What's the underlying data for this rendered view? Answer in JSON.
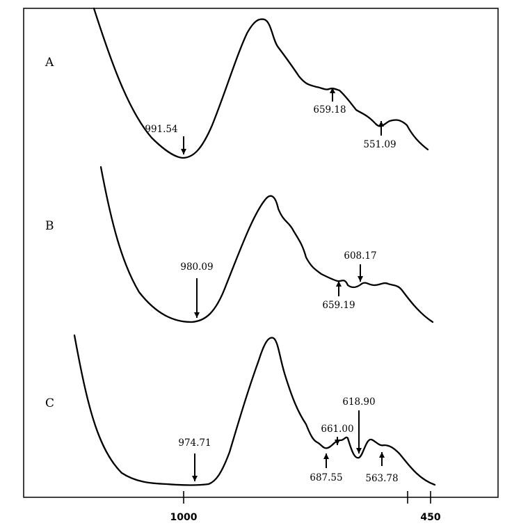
{
  "chart_data": {
    "type": "line",
    "title": "",
    "xlabel": "",
    "ylabel": "",
    "x_tick_labels": [
      "1000",
      "450"
    ],
    "grid": false,
    "series": [
      {
        "name": "A",
        "annotations": [
          {
            "x": 991.54,
            "label": "991.54",
            "dir": "down"
          },
          {
            "x": 659.18,
            "label": "659.18",
            "dir": "up"
          },
          {
            "x": 551.09,
            "label": "551.09",
            "dir": "up"
          }
        ]
      },
      {
        "name": "B",
        "annotations": [
          {
            "x": 980.09,
            "label": "980.09",
            "dir": "down"
          },
          {
            "x": 659.19,
            "label": "659.19",
            "dir": "up"
          },
          {
            "x": 608.17,
            "label": "608.17",
            "dir": "down"
          }
        ]
      },
      {
        "name": "C",
        "annotations": [
          {
            "x": 974.71,
            "label": "974.71",
            "dir": "down"
          },
          {
            "x": 687.55,
            "label": "687.55",
            "dir": "up"
          },
          {
            "x": 661.0,
            "label": "661.00",
            "dir": "down"
          },
          {
            "x": 618.9,
            "label": "618.90",
            "dir": "down"
          },
          {
            "x": 563.78,
            "label": "563.78",
            "dir": "up"
          }
        ]
      }
    ]
  }
}
